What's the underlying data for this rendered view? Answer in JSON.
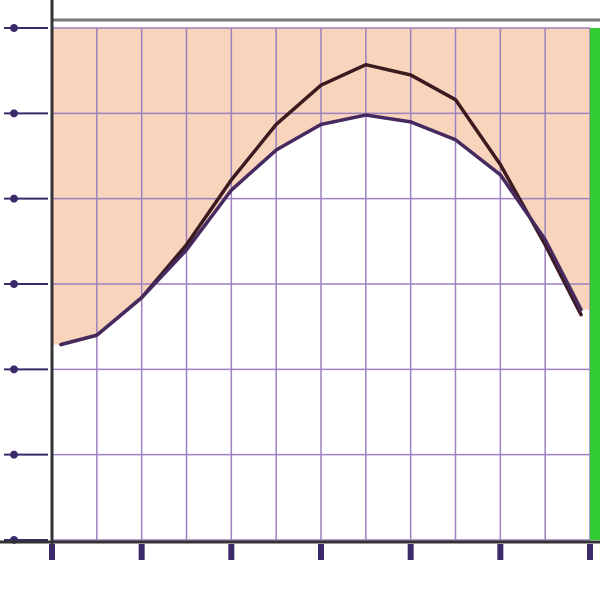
{
  "chart_data": {
    "type": "line",
    "x": [
      0.2,
      1,
      2,
      3,
      4,
      5,
      6,
      7,
      8,
      9,
      10,
      11,
      11.8
    ],
    "series": [
      {
        "color": "#3b1b1f",
        "values": [
          2.29,
          2.4,
          2.84,
          3.46,
          4.22,
          4.87,
          5.33,
          5.57,
          5.45,
          5.16,
          4.4,
          3.46,
          2.64
        ]
      },
      {
        "color": "#45295f",
        "values": [
          2.29,
          2.4,
          2.84,
          3.4,
          4.1,
          4.57,
          4.87,
          4.98,
          4.9,
          4.69,
          4.28,
          3.52,
          2.7
        ]
      }
    ],
    "fill_color": "#f8d4bd",
    "xlim": [
      0,
      12
    ],
    "xticks": [
      0,
      1,
      2,
      3,
      4,
      5,
      6,
      7,
      8,
      9,
      10,
      11,
      12
    ],
    "ylim": [
      0,
      6
    ],
    "yticks": [
      0,
      1,
      2,
      3,
      4,
      5,
      6
    ],
    "grid": true,
    "grid_color": "#9c80bf"
  }
}
